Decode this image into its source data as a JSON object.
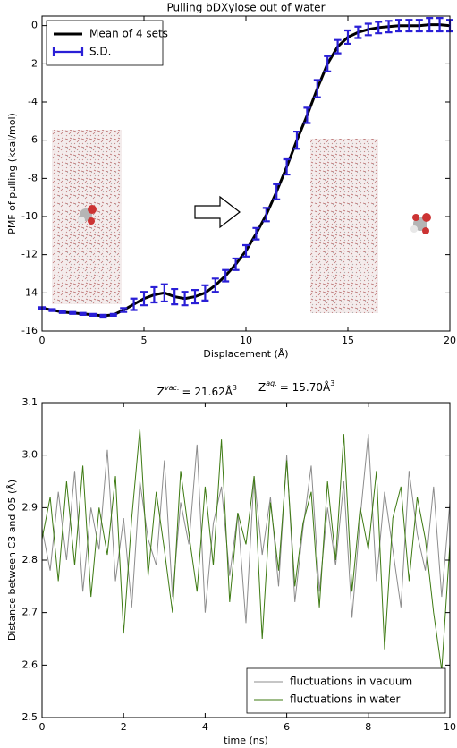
{
  "chart_data": [
    {
      "type": "line",
      "title": "Pulling bDXylose out of water",
      "x_label": "Displacement (Å)",
      "y_label": "PMF of pulling (kcal/mol)",
      "xlim": [
        0,
        20
      ],
      "ylim": [
        -16,
        0.5
      ],
      "xticks": [
        0,
        5,
        10,
        15,
        20
      ],
      "yticks": [
        0,
        -2,
        -4,
        -6,
        -8,
        -10,
        -12,
        -14,
        -16
      ],
      "legend": "upper left",
      "x": [
        0,
        0.5,
        1,
        1.5,
        2,
        2.5,
        3,
        3.5,
        4,
        4.5,
        5,
        5.5,
        6,
        6.5,
        7,
        7.5,
        8,
        8.5,
        9,
        9.5,
        10,
        10.5,
        11,
        11.5,
        12,
        12.5,
        13,
        13.5,
        14,
        14.5,
        15,
        15.5,
        16,
        16.5,
        17,
        17.5,
        18,
        18.5,
        19,
        19.5,
        20
      ],
      "series": [
        {
          "name": "Mean of 4 sets",
          "color": "#000000",
          "values": [
            -14.8,
            -14.9,
            -15.0,
            -15.05,
            -15.1,
            -15.15,
            -15.2,
            -15.15,
            -14.9,
            -14.6,
            -14.3,
            -14.1,
            -14.0,
            -14.2,
            -14.3,
            -14.2,
            -14.0,
            -13.6,
            -13.1,
            -12.5,
            -11.8,
            -10.9,
            -9.9,
            -8.7,
            -7.4,
            -6.0,
            -4.7,
            -3.3,
            -2.0,
            -1.1,
            -0.6,
            -0.35,
            -0.2,
            -0.1,
            -0.05,
            0,
            0,
            0,
            0.05,
            0.05,
            0
          ]
        }
      ],
      "error_bars": {
        "name": "S.D.",
        "color": "#2a1fd6",
        "values": [
          0.05,
          0.05,
          0.05,
          0.05,
          0.05,
          0.05,
          0.05,
          0.05,
          0.1,
          0.3,
          0.35,
          0.4,
          0.45,
          0.4,
          0.35,
          0.35,
          0.4,
          0.35,
          0.3,
          0.3,
          0.3,
          0.3,
          0.35,
          0.4,
          0.4,
          0.45,
          0.4,
          0.45,
          0.4,
          0.35,
          0.35,
          0.3,
          0.3,
          0.3,
          0.3,
          0.3,
          0.3,
          0.3,
          0.35,
          0.35,
          0.3
        ]
      }
    },
    {
      "type": "line",
      "annotations": [
        {
          "symbol": "Z",
          "superscript": "vac.",
          "text": "=  21.62Å",
          "unit_superscript": "3"
        },
        {
          "symbol": "Z",
          "superscript": "aq.",
          "text": "=  15.70Å",
          "unit_superscript": "3"
        }
      ],
      "x_label": "time (ns)",
      "y_label": "Distance between C3 and O5 (Å)",
      "xlim": [
        0,
        10
      ],
      "ylim": [
        2.5,
        3.1
      ],
      "xticks": [
        0,
        2,
        4,
        6,
        8,
        10
      ],
      "yticks": [
        2.5,
        2.6,
        2.7,
        2.8,
        2.9,
        {
          "value": 3,
          "label": "3.0"
        },
        3.1
      ],
      "legend": "lower right",
      "x": [
        0,
        0.2,
        0.4,
        0.6,
        0.8,
        1,
        1.2,
        1.4,
        1.6,
        1.8,
        2,
        2.2,
        2.4,
        2.6,
        2.8,
        3,
        3.2,
        3.4,
        3.6,
        3.8,
        4,
        4.2,
        4.4,
        4.6,
        4.8,
        5,
        5.2,
        5.4,
        5.6,
        5.8,
        6,
        6.2,
        6.4,
        6.6,
        6.8,
        7,
        7.2,
        7.4,
        7.6,
        7.8,
        8,
        8.2,
        8.4,
        8.6,
        8.8,
        9,
        9.2,
        9.4,
        9.6,
        9.8,
        10
      ],
      "series": [
        {
          "name": "fluctuations in vacuum",
          "color": "#8c8c8c",
          "values": [
            2.86,
            2.78,
            2.93,
            2.8,
            2.97,
            2.74,
            2.9,
            2.82,
            3.01,
            2.76,
            2.88,
            2.71,
            2.95,
            2.84,
            2.79,
            2.99,
            2.73,
            2.91,
            2.83,
            3.02,
            2.7,
            2.87,
            2.94,
            2.77,
            2.89,
            2.68,
            2.96,
            2.81,
            2.92,
            2.75,
            3.0,
            2.72,
            2.86,
            2.98,
            2.74,
            2.9,
            2.79,
            2.95,
            2.69,
            2.88,
            3.04,
            2.76,
            2.93,
            2.82,
            2.71,
            2.97,
            2.85,
            2.78,
            2.94,
            2.73,
            2.91
          ]
        },
        {
          "name": "fluctuations in water",
          "color": "#3d7a12",
          "values": [
            2.84,
            2.92,
            2.76,
            2.95,
            2.79,
            2.98,
            2.73,
            2.9,
            2.81,
            2.96,
            2.66,
            2.88,
            3.05,
            2.77,
            2.93,
            2.82,
            2.7,
            2.97,
            2.85,
            2.74,
            2.94,
            2.79,
            3.03,
            2.72,
            2.89,
            2.83,
            2.96,
            2.65,
            2.91,
            2.78,
            2.99,
            2.75,
            2.87,
            2.93,
            2.71,
            2.95,
            2.8,
            3.04,
            2.74,
            2.9,
            2.82,
            2.97,
            2.63,
            2.88,
            2.94,
            2.76,
            2.92,
            2.84,
            2.7,
            2.59,
            2.83
          ]
        }
      ]
    }
  ]
}
